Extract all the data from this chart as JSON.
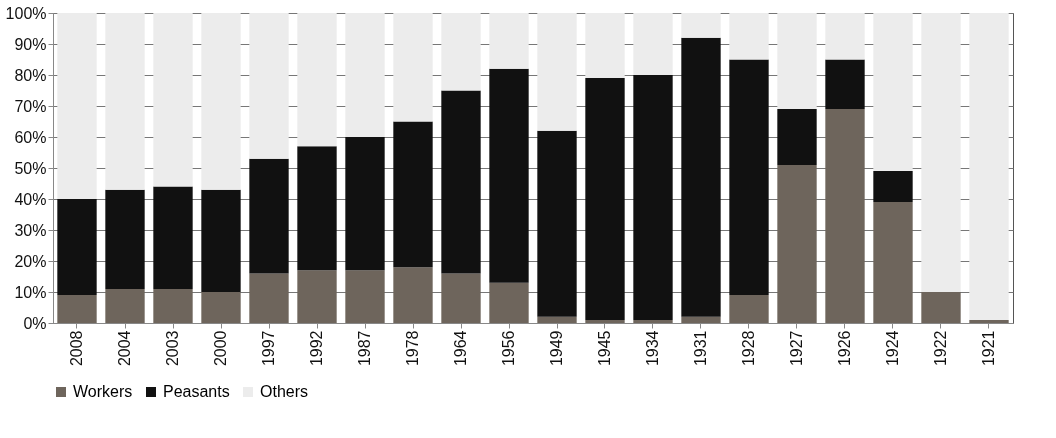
{
  "chart_data": {
    "type": "bar",
    "stacked": true,
    "categories": [
      "2008",
      "2004",
      "2003",
      "2000",
      "1997",
      "1992",
      "1987",
      "1978",
      "1964",
      "1956",
      "1949",
      "1945",
      "1934",
      "1931",
      "1928",
      "1927",
      "1926",
      "1924",
      "1922",
      "1921"
    ],
    "series": [
      {
        "name": "Workers",
        "color": "#6e655c",
        "values": [
          9,
          11,
          11,
          10,
          16,
          17,
          17,
          18,
          16,
          13,
          2,
          1,
          1,
          2,
          9,
          51,
          69,
          39,
          10,
          1
        ]
      },
      {
        "name": "Peasants",
        "color": "#111111",
        "values": [
          31,
          32,
          33,
          33,
          37,
          40,
          43,
          47,
          59,
          69,
          60,
          78,
          79,
          90,
          76,
          18,
          16,
          10,
          0,
          0
        ]
      },
      {
        "name": "Others",
        "color": "#ececec",
        "values": [
          60,
          57,
          56,
          57,
          47,
          43,
          40,
          35,
          25,
          18,
          38,
          21,
          20,
          8,
          15,
          31,
          15,
          51,
          90,
          99
        ]
      }
    ],
    "ylim": [
      0,
      100
    ],
    "yticks": [
      {
        "value": 0,
        "label": "0%"
      },
      {
        "value": 10,
        "label": "10%"
      },
      {
        "value": 20,
        "label": "20%"
      },
      {
        "value": 30,
        "label": "30%"
      },
      {
        "value": 40,
        "label": "40%"
      },
      {
        "value": 50,
        "label": "50%"
      },
      {
        "value": 60,
        "label": "60%"
      },
      {
        "value": 70,
        "label": "70%"
      },
      {
        "value": 80,
        "label": "80%"
      },
      {
        "value": 90,
        "label": "90%"
      },
      {
        "value": 100,
        "label": "100%"
      }
    ],
    "grid": "y",
    "legend": "bottom"
  }
}
